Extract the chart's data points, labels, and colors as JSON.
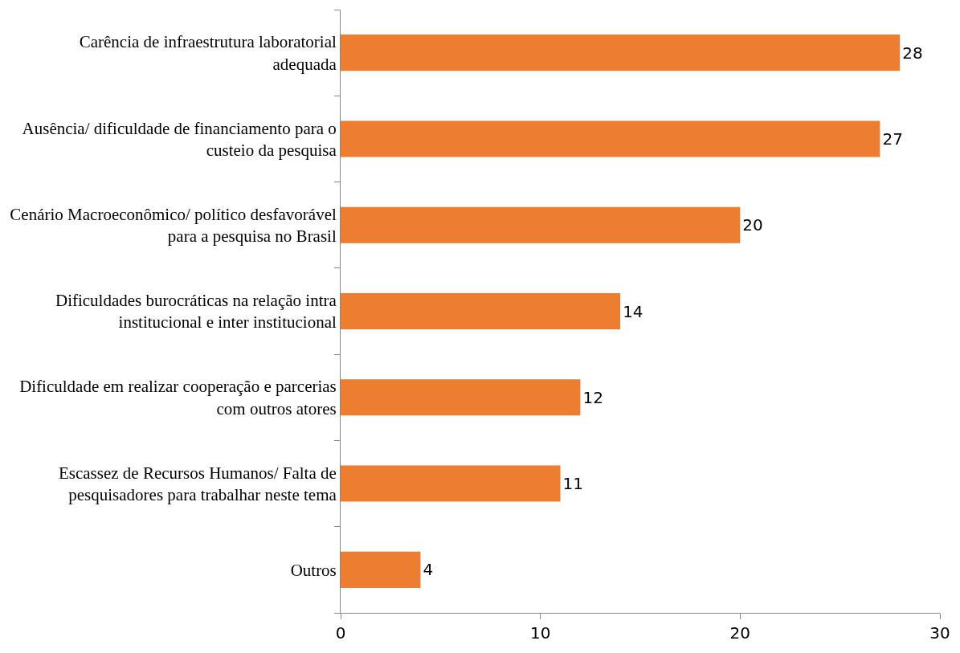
{
  "chart_data": {
    "type": "bar",
    "orientation": "horizontal",
    "categories": [
      "Carência de infraestrutura laboratorial adequada",
      "Ausência/ dificuldade de financiamento para o custeio da pesquisa",
      "Cenário Macroeconômico/ político desfavorável para a pesquisa no Brasil",
      "Dificuldades burocráticas na relação intra institucional e inter institucional",
      "Dificuldade em realizar cooperação e parcerias com outros atores",
      "Escassez de Recursos Humanos/ Falta de pesquisadores para trabalhar neste tema",
      "Outros"
    ],
    "values": [
      28,
      27,
      20,
      14,
      12,
      11,
      4
    ],
    "color": "#ed7d31",
    "xlim": [
      0,
      30
    ],
    "xticks": [
      0,
      10,
      20,
      30
    ],
    "data_labels": true
  }
}
